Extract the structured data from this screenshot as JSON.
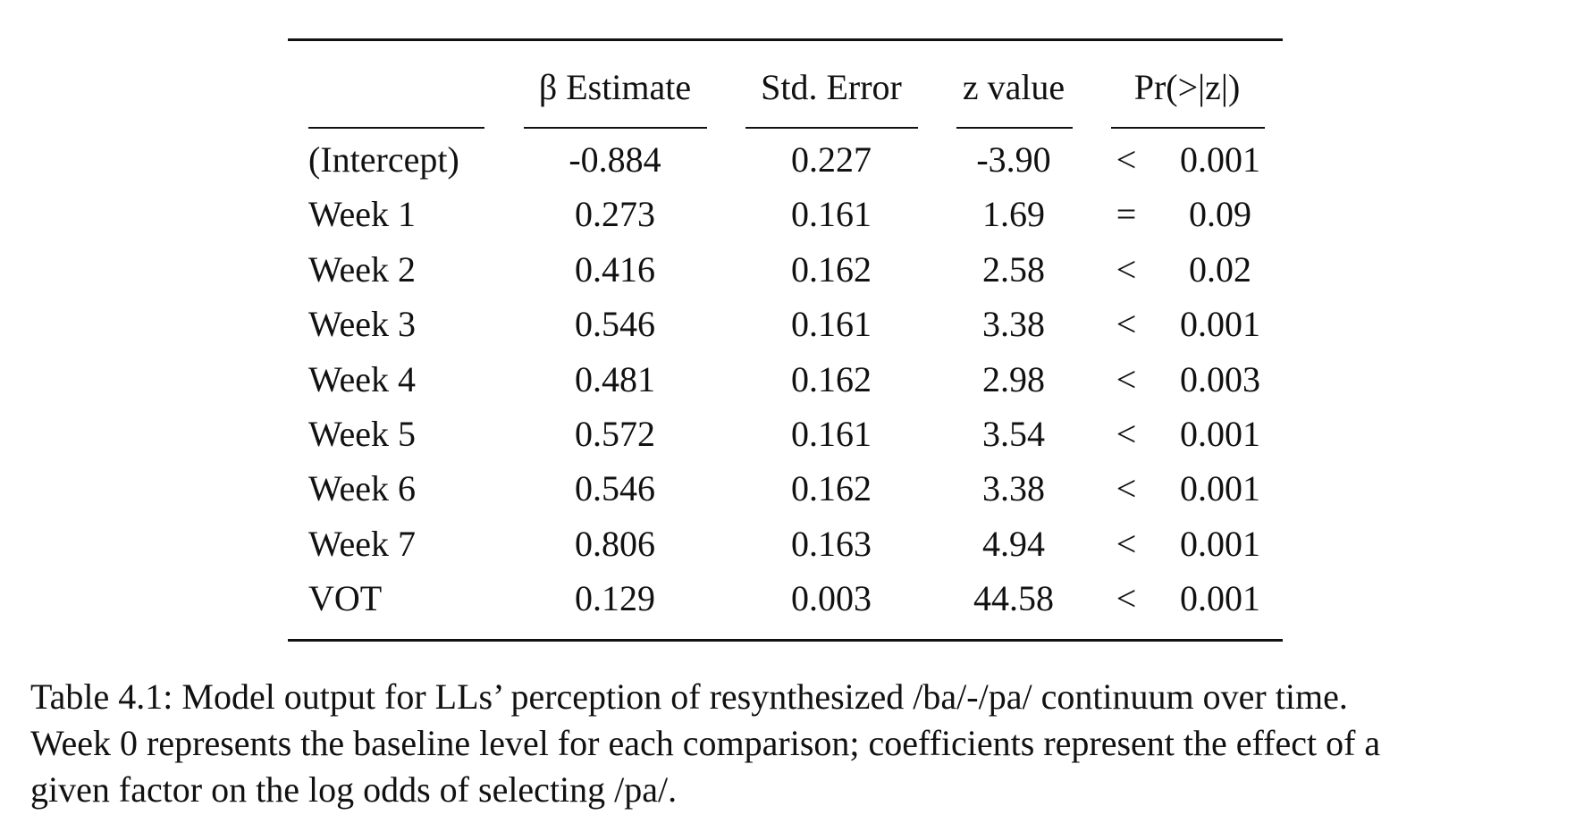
{
  "table": {
    "header": [
      "β Estimate",
      "Std. Error",
      "z value",
      "Pr(>|z|)"
    ],
    "rows": [
      [
        "(Intercept)",
        "-0.884",
        "0.227",
        "-3.90",
        "<",
        "0.001"
      ],
      [
        "Week 1",
        "0.273",
        "0.161",
        "1.69",
        "=",
        "0.09"
      ],
      [
        "Week 2",
        "0.416",
        "0.162",
        "2.58",
        "<",
        "0.02"
      ],
      [
        "Week 3",
        "0.546",
        "0.161",
        "3.38",
        "<",
        "0.001"
      ],
      [
        "Week 4",
        "0.481",
        "0.162",
        "2.98",
        "<",
        "0.003"
      ],
      [
        "Week 5",
        "0.572",
        "0.161",
        "3.54",
        "<",
        "0.001"
      ],
      [
        "Week 6",
        "0.546",
        "0.162",
        "3.38",
        "<",
        "0.001"
      ],
      [
        "Week 7",
        "0.806",
        "0.163",
        "4.94",
        "<",
        "0.001"
      ],
      [
        "VOT",
        "0.129",
        "0.003",
        "44.58",
        "<",
        "0.001"
      ]
    ]
  },
  "caption": {
    "lines": [
      "Table 4.1: Model output for LLs’ perception of resynthesized /ba/-/pa/ continuum over time.",
      "Week 0 represents the baseline level for each comparison; coefficients represent the effect of a",
      "given factor on the log odds of selecting /pa/."
    ]
  }
}
